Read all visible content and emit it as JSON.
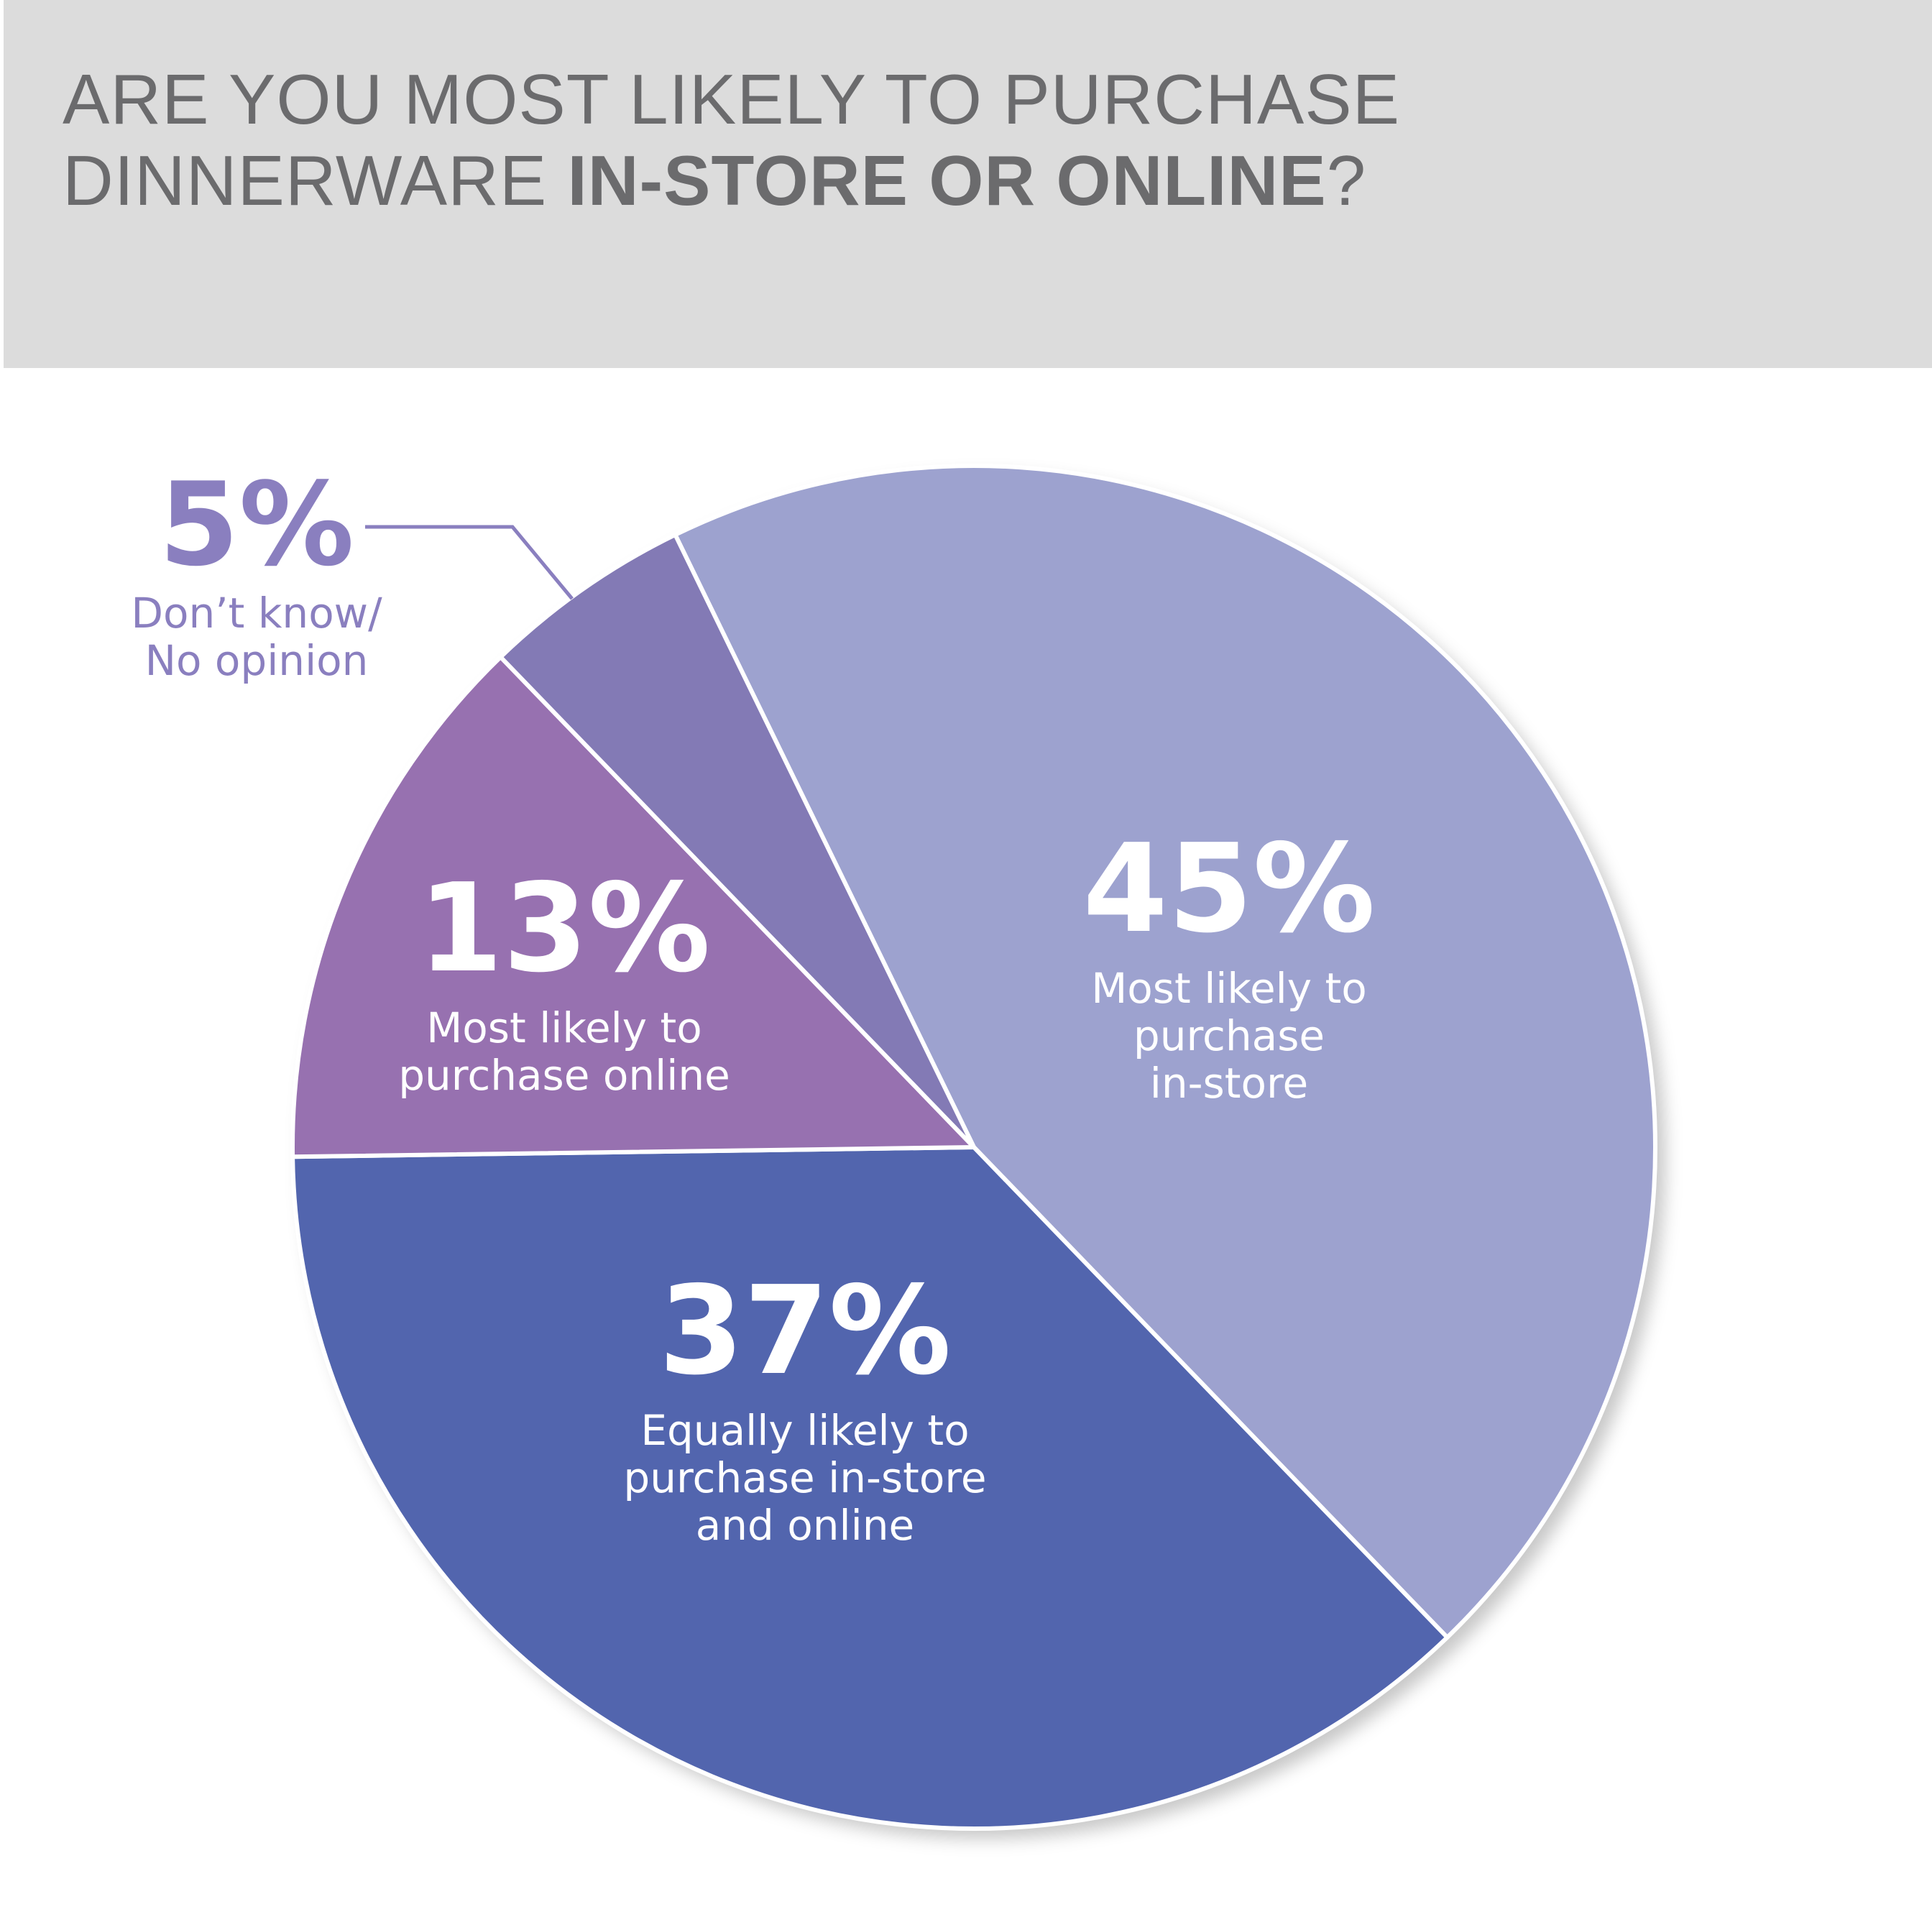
{
  "title": {
    "line1": "ARE YOU MOST LIKELY TO PURCHASE",
    "line2_regular": "DINNERWARE ",
    "line2_bold": "IN-STORE OR ONLINE",
    "line2_end": "?"
  },
  "chart_data": {
    "type": "pie",
    "slices": [
      {
        "value": 45,
        "percent_label": "45%",
        "label_lines": [
          "Most likely to",
          "purchase",
          "in-store"
        ],
        "color": "#9da2cf"
      },
      {
        "value": 37,
        "percent_label": "37%",
        "label_lines": [
          "Equally likely to",
          "purchase in-store",
          "and online"
        ],
        "color": "#5265ae"
      },
      {
        "value": 13,
        "percent_label": "13%",
        "label_lines": [
          "Most likely to",
          "purchase online"
        ],
        "color": "#9771b0"
      },
      {
        "value": 5,
        "percent_label": "5%",
        "label_lines": [
          "Don’t know/",
          "No opinion"
        ],
        "color": "#837ab5"
      }
    ],
    "label_text_color": "#ffffff",
    "callout_color": "#8a7fbf",
    "separator_color": "#ffffff"
  }
}
